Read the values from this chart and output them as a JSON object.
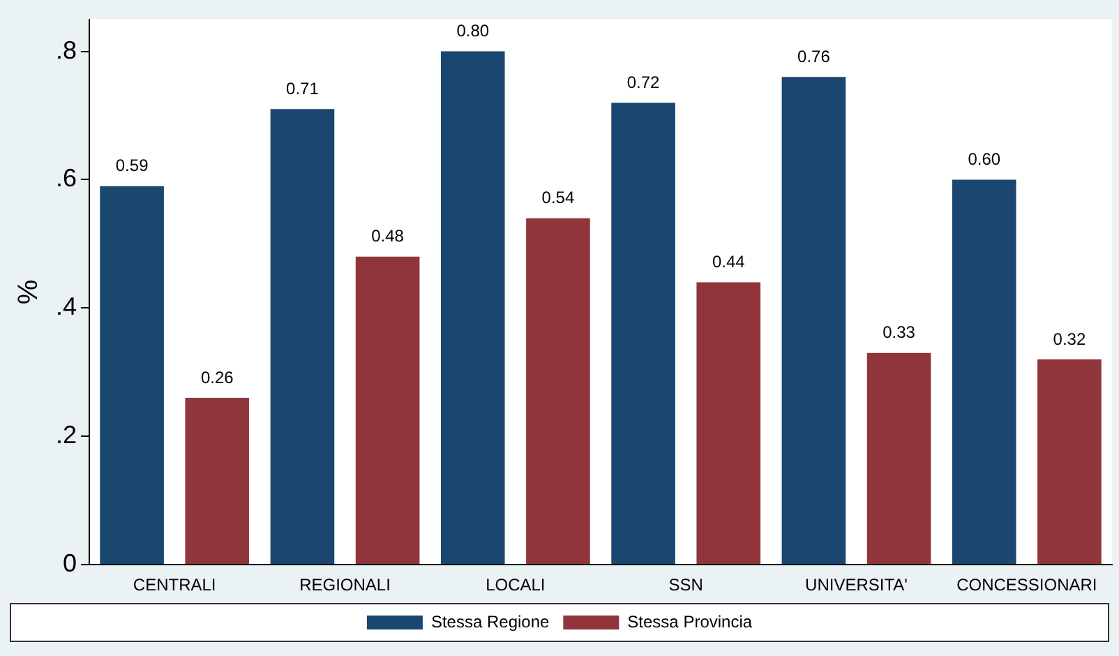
{
  "chart_data": {
    "type": "bar",
    "ylabel": "%",
    "categories": [
      "CENTRALI",
      "REGIONALI",
      "LOCALI",
      "SSN",
      "UNIVERSITA'",
      "CONCESSIONARI"
    ],
    "series": [
      {
        "name": "Stessa Regione",
        "color": "#1a476f",
        "values": [
          0.59,
          0.71,
          0.8,
          0.72,
          0.76,
          0.6
        ],
        "value_labels": [
          "0.59",
          "0.71",
          "0.80",
          "0.72",
          "0.76",
          "0.60"
        ]
      },
      {
        "name": "Stessa Provincia",
        "color": "#90353b",
        "values": [
          0.26,
          0.48,
          0.54,
          0.44,
          0.33,
          0.32
        ],
        "value_labels": [
          "0.26",
          "0.48",
          "0.54",
          "0.44",
          "0.33",
          "0.32"
        ]
      }
    ],
    "ylim": [
      0,
      0.85
    ],
    "yticks": [
      0,
      {
        "value": 0.2,
        "label": ".2"
      },
      {
        "value": 0.4,
        "label": ".4"
      },
      {
        "value": 0.6,
        "label": ".6"
      },
      {
        "value": 0.8,
        "label": ".8"
      }
    ],
    "grid": false,
    "legend": "bottom"
  }
}
